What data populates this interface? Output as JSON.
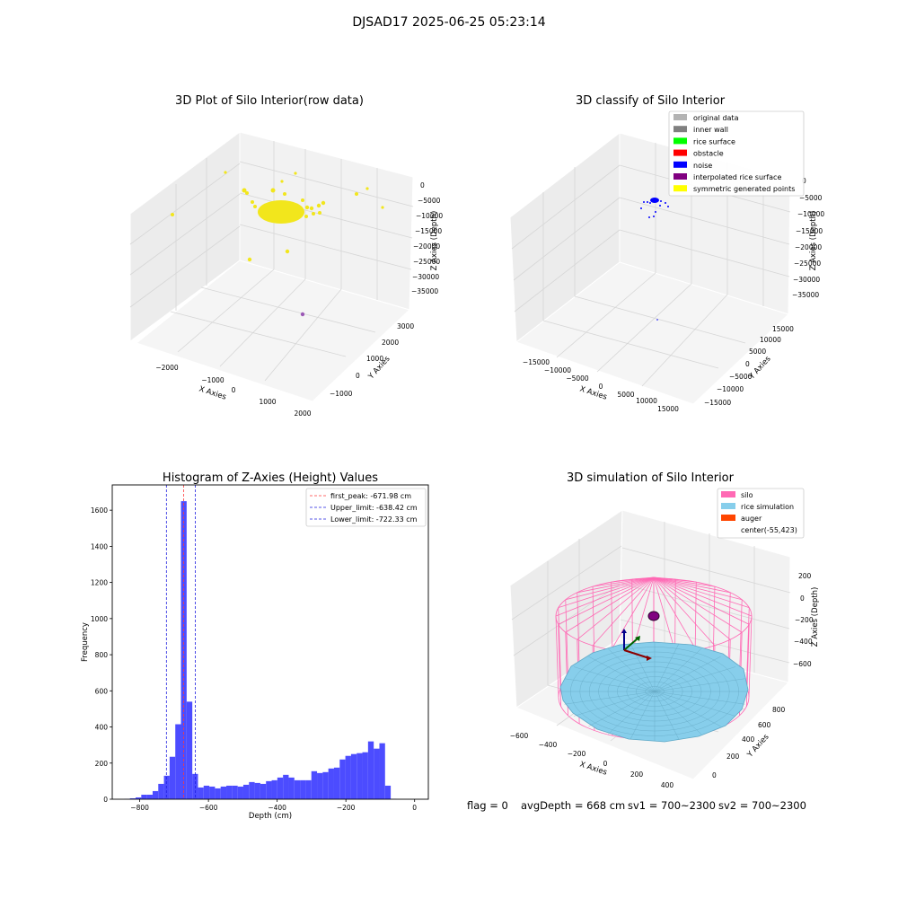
{
  "figure": {
    "suptitle": "DJSAD17 2025-06-25 05:23:14"
  },
  "footer": {
    "flag": "flag = 0",
    "avg_depth": "avgDepth = 668 cm",
    "sv1": "sv1 = 700~2300",
    "sv2": "sv2 = 700~2300"
  },
  "chart_data": [
    {
      "type": "scatter",
      "title": "3D Plot of Silo Interior(row data)",
      "xlabel": "X Axies",
      "ylabel": "Y Axies",
      "zlabel": "Z Axies (Depth)",
      "xticks": [
        "−2000",
        "−1000",
        "0",
        "1000",
        "2000"
      ],
      "yticks": [
        "−1000",
        "0",
        "1000",
        "2000",
        "3000"
      ],
      "zticks": [
        "0",
        "−5000",
        "−10000",
        "−15000",
        "−20000",
        "−25000",
        "−30000",
        "−35000"
      ],
      "xlim": [
        -2500,
        2000
      ],
      "ylim": [
        -1500,
        3500
      ],
      "zlim": [
        -38000,
        500
      ],
      "point_color": "#f2e61c",
      "outlier_color": "#9b59b6"
    },
    {
      "type": "scatter",
      "title": "3D classify of Silo Interior",
      "xlabel": "X Axies",
      "ylabel": "Y Axies",
      "zlabel": "Z Axies (Depth)",
      "xticks": [
        "−15000",
        "−10000",
        "−5000",
        "0",
        "5000",
        "10000",
        "15000"
      ],
      "yticks": [
        "−15000",
        "−10000",
        "−5000",
        "0",
        "5000",
        "10000",
        "15000"
      ],
      "zticks": [
        "0",
        "−5000",
        "−10000",
        "−15000",
        "−20000",
        "−25000",
        "−30000",
        "−35000"
      ],
      "legend": [
        {
          "label": "original data",
          "color": "#b3b3b3"
        },
        {
          "label": "inner wall",
          "color": "#808080"
        },
        {
          "label": "rice surface",
          "color": "#00ff00"
        },
        {
          "label": "obstacle",
          "color": "#ff0000"
        },
        {
          "label": "noise",
          "color": "#0000ff"
        },
        {
          "label": "interpolated rice surface",
          "color": "#800080"
        },
        {
          "label": "symmetric generated points",
          "color": "#ffff00"
        }
      ],
      "legend_loc": "upper right"
    },
    {
      "type": "bar",
      "title": "Histogram of Z-Axies (Height) Values",
      "xlabel": "Depth (cm)",
      "ylabel": "Frequency",
      "xlim": [
        -880,
        40
      ],
      "ylim": [
        0,
        1740
      ],
      "xticks": [
        -800,
        -600,
        -400,
        -200,
        0
      ],
      "yticks": [
        0,
        200,
        400,
        600,
        800,
        1000,
        1200,
        1400,
        1600
      ],
      "bin_start": -845,
      "bin_width": 16.5,
      "values": [
        2,
        5,
        10,
        25,
        25,
        45,
        85,
        130,
        235,
        415,
        1650,
        540,
        140,
        65,
        75,
        70,
        60,
        70,
        75,
        75,
        70,
        80,
        95,
        90,
        85,
        100,
        105,
        120,
        135,
        120,
        105,
        105,
        105,
        155,
        145,
        150,
        170,
        175,
        220,
        240,
        250,
        255,
        260,
        320,
        280,
        310,
        75,
        2
      ],
      "bar_color": "#4c4cff",
      "vlines": [
        {
          "label": "first_peak: -671.98 cm",
          "x": -671.98,
          "color": "#ff3b3b"
        },
        {
          "label": "Upper_limit: -638.42 cm",
          "x": -638.42,
          "color": "#2020e0"
        },
        {
          "label": "Lower_limit: -722.33 cm",
          "x": -722.33,
          "color": "#2020e0"
        }
      ],
      "legend_loc": "upper right"
    },
    {
      "type": "surface",
      "title": "3D simulation of Silo Interior",
      "xlabel": "X Axies",
      "ylabel": "Y Axies",
      "zlabel": "Z Axies (Depth)",
      "xticks": [
        "−600",
        "−400",
        "−200",
        "0",
        "200",
        "400"
      ],
      "yticks": [
        "0",
        "200",
        "400",
        "600",
        "800"
      ],
      "zticks": [
        "200",
        "0",
        "−200",
        "−400",
        "−600"
      ],
      "legend": [
        {
          "label": "silo",
          "color": "#ff69b4"
        },
        {
          "label": "rice simulation",
          "color": "#87ceeb"
        },
        {
          "label": "auger",
          "color": "#ff4500"
        },
        {
          "label": "center(-55,423)",
          "color": ""
        }
      ],
      "legend_loc": "upper right"
    }
  ]
}
